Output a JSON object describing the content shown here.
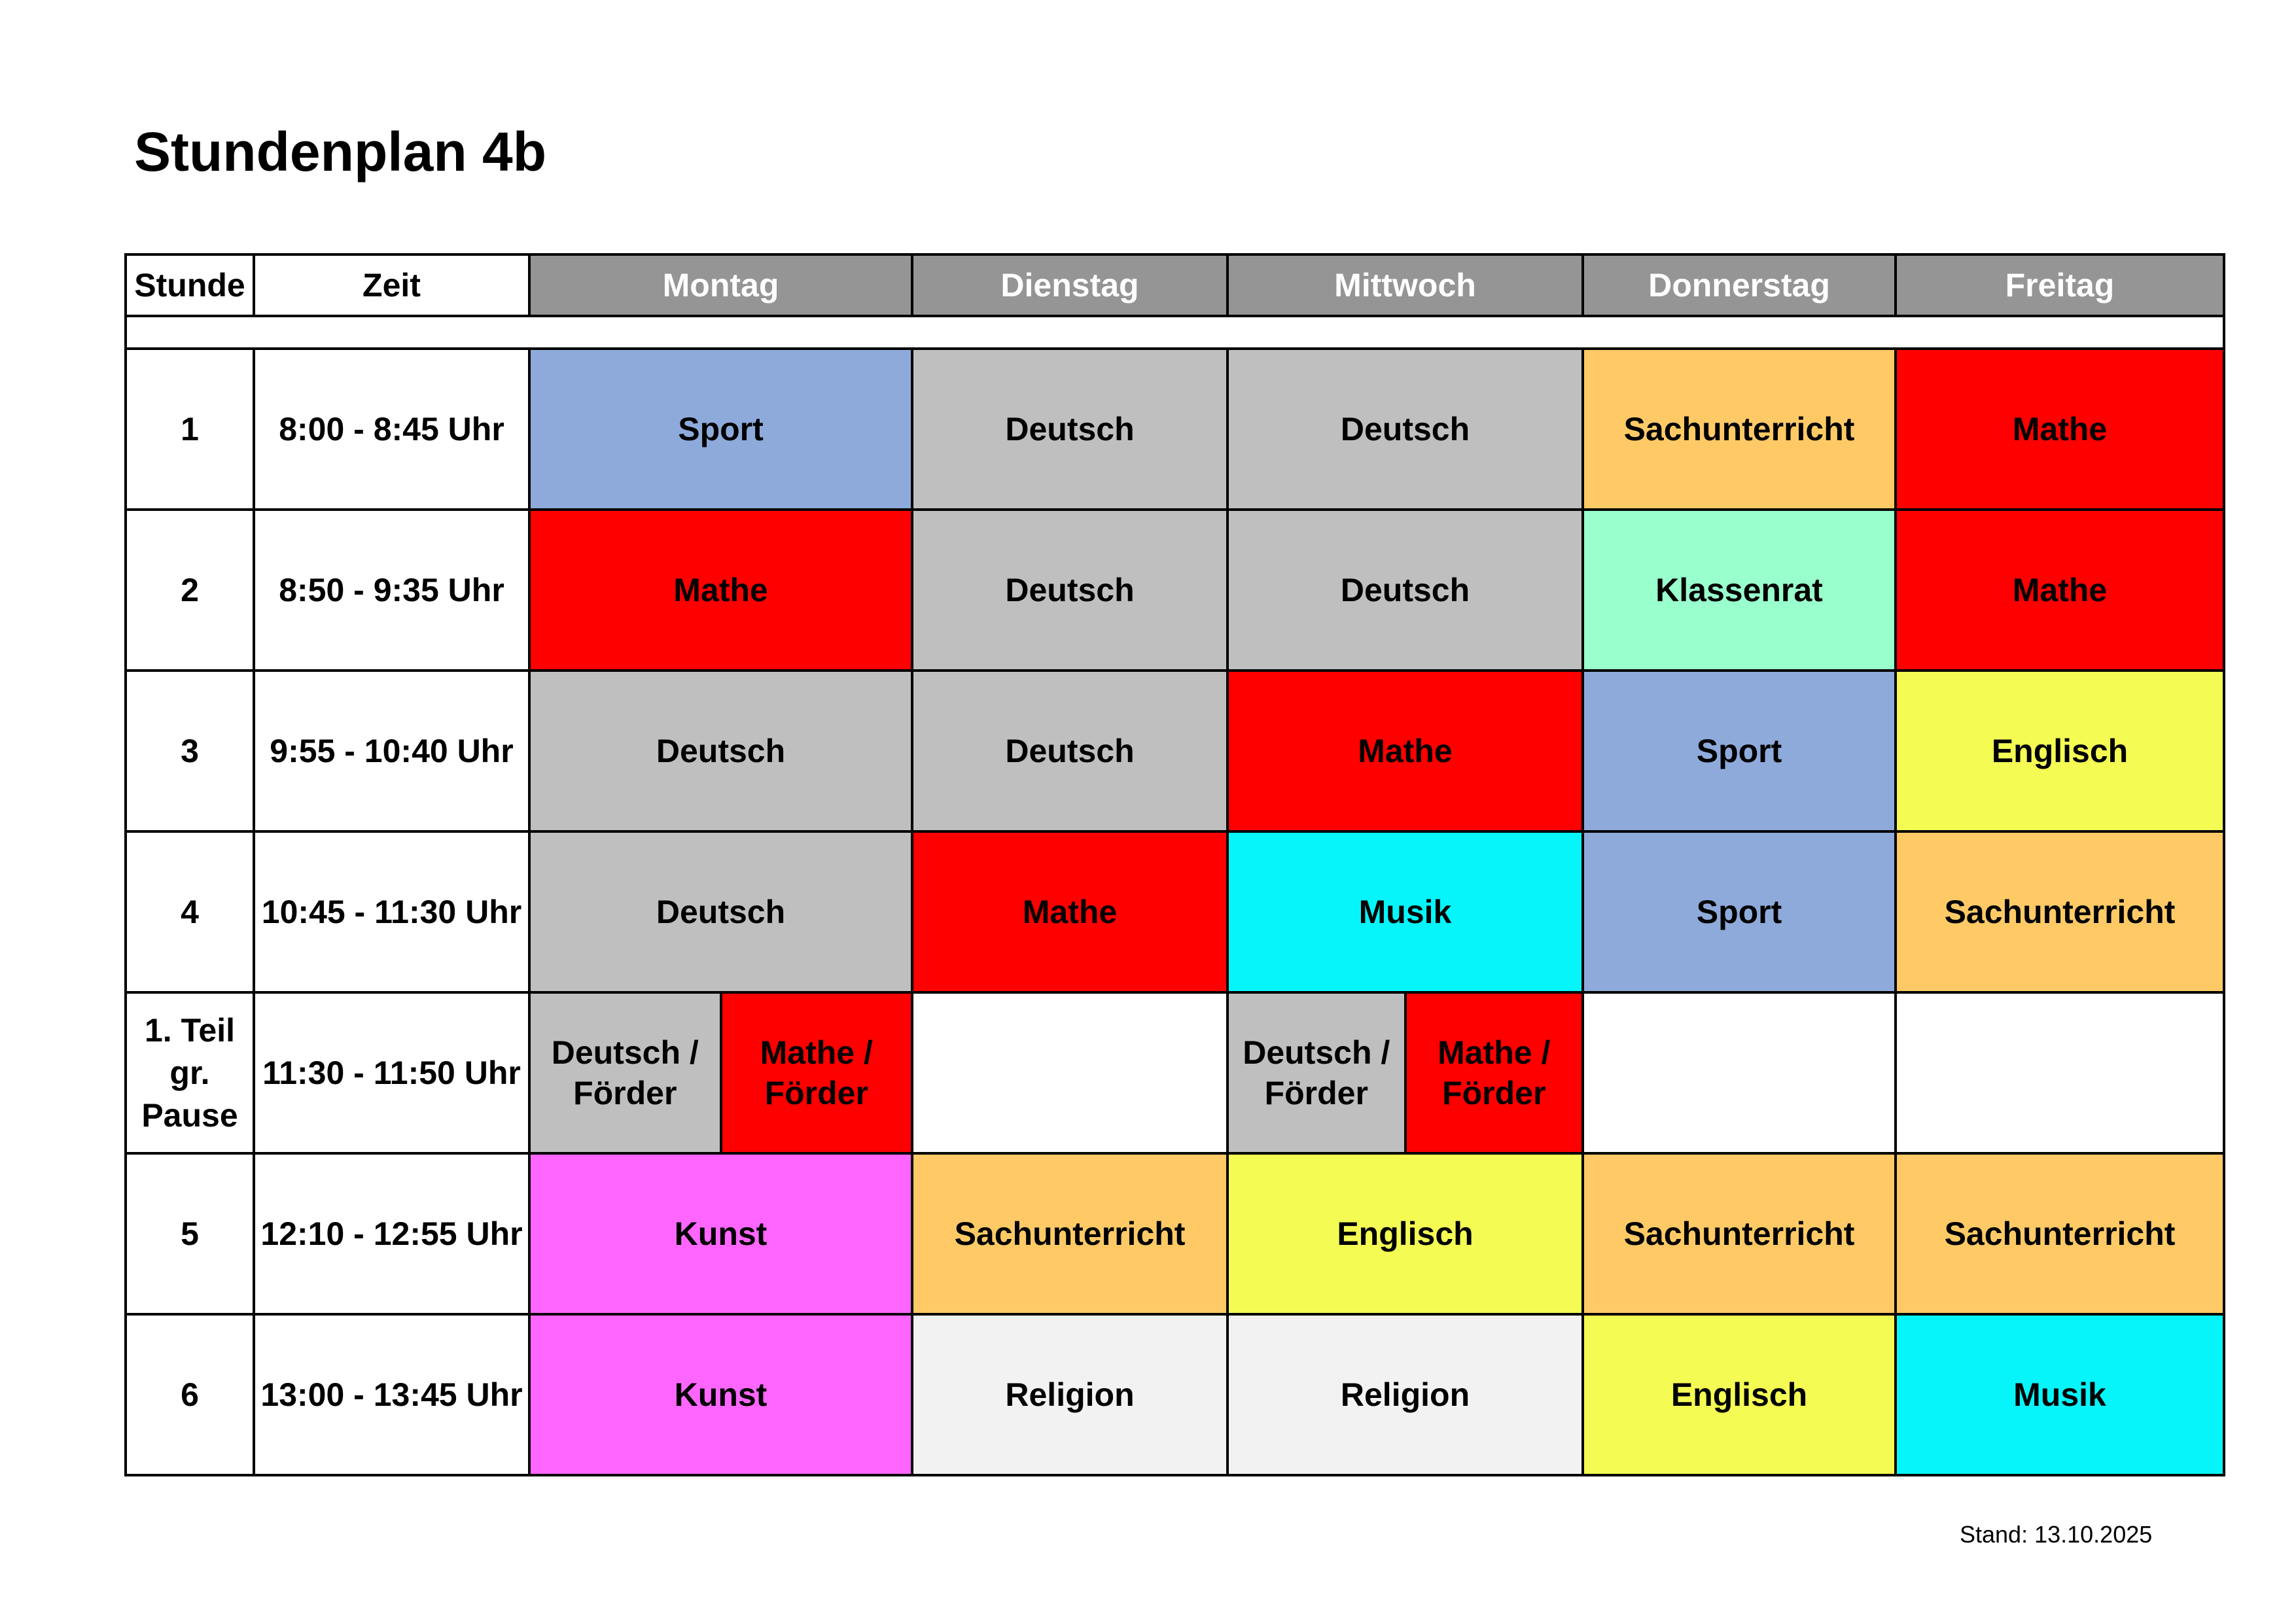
{
  "title": "Stundenplan 4b",
  "header": {
    "stunde": "Stunde",
    "zeit": "Zeit",
    "days": [
      "Montag",
      "Dienstag",
      "Mittwoch",
      "Donnerstag",
      "Freitag"
    ]
  },
  "colors": {
    "Sport": "#8eaadb",
    "Deutsch": "#bfbfbf",
    "Sachunterricht": "#ffca66",
    "Mathe": "#ff0000",
    "Klassenrat": "#99ffcc",
    "Englisch": "#f4fb53",
    "Musik": "#05f5fb",
    "Kunst": "#ff66ff",
    "Religion": "#f2f2f2",
    "empty": "#ffffff",
    "header_day_bg": "#959595"
  },
  "rows": [
    {
      "num": "1",
      "time": "8:00 - 8:45 Uhr",
      "cells": [
        [
          "Sport"
        ],
        [
          "Deutsch"
        ],
        [
          "Deutsch"
        ],
        [
          "Sachunterricht"
        ],
        [
          "Mathe"
        ]
      ]
    },
    {
      "num": "2",
      "time": "8:50 - 9:35 Uhr",
      "cells": [
        [
          "Mathe"
        ],
        [
          "Deutsch"
        ],
        [
          "Deutsch"
        ],
        [
          "Klassenrat"
        ],
        [
          "Mathe"
        ]
      ]
    },
    {
      "num": "3",
      "time": "9:55 - 10:40 Uhr",
      "cells": [
        [
          "Deutsch"
        ],
        [
          "Deutsch"
        ],
        [
          "Mathe"
        ],
        [
          "Sport"
        ],
        [
          "Englisch"
        ]
      ]
    },
    {
      "num": "4",
      "time": "10:45 - 11:30 Uhr",
      "cells": [
        [
          "Deutsch"
        ],
        [
          "Mathe"
        ],
        [
          "Musik"
        ],
        [
          "Sport"
        ],
        [
          "Sachunterricht"
        ]
      ]
    },
    {
      "num": "1. Teil gr. Pause",
      "time": "11:30 - 11:50 Uhr",
      "cells": [
        [
          "Deutsch / Förder",
          "Mathe / Förder"
        ],
        [],
        [
          "Deutsch / Förder",
          "Mathe / Förder"
        ],
        [],
        []
      ]
    },
    {
      "num": "5",
      "time": "12:10 - 12:55 Uhr",
      "cells": [
        [
          "Kunst"
        ],
        [
          "Sachunterricht"
        ],
        [
          "Englisch"
        ],
        [
          "Sachunterricht"
        ],
        [
          "Sachunterricht"
        ]
      ]
    },
    {
      "num": "6",
      "time": "13:00 - 13:45 Uhr",
      "cells": [
        [
          "Kunst"
        ],
        [
          "Religion"
        ],
        [
          "Religion"
        ],
        [
          "Englisch"
        ],
        [
          "Musik"
        ]
      ]
    }
  ],
  "stand": "Stand: 13.10.2025"
}
